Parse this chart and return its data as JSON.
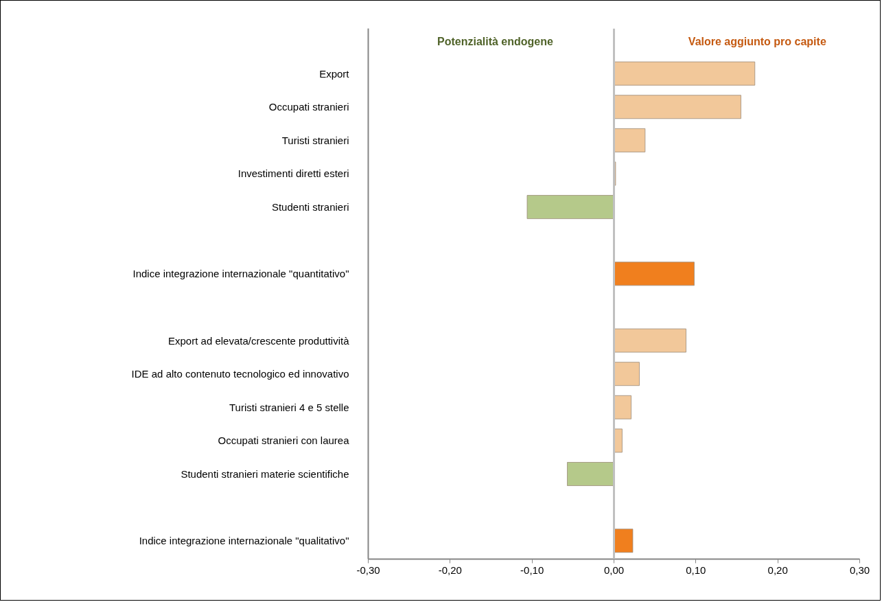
{
  "chart_data": {
    "type": "bar",
    "orientation": "horizontal",
    "categories": [
      "Export",
      "Occupati stranieri",
      "Turisti stranieri",
      "Investimenti diretti esteri",
      "Studenti stranieri",
      null,
      "Indice integrazione internazionale \"quantitativo\"",
      null,
      "Export ad elevata/crescente produttività",
      "IDE ad alto contenuto tecnologico ed innovativo",
      "Turisti stranieri 4 e 5 stelle",
      "Occupati stranieri con laurea",
      "Studenti stranieri materie scientifiche",
      null,
      "Indice integrazione internazionale \"qualitativo\""
    ],
    "values": [
      0.172,
      0.155,
      0.038,
      0.002,
      -0.106,
      null,
      0.098,
      null,
      0.088,
      0.031,
      0.021,
      0.01,
      -0.057,
      null,
      0.023
    ],
    "colors": [
      "#f2c89a",
      "#f2c89a",
      "#f2c89a",
      "#f2c89a",
      "#b5c98a",
      null,
      "#f07f1e",
      null,
      "#f2c89a",
      "#f2c89a",
      "#f2c89a",
      "#f2c89a",
      "#b5c98a",
      null,
      "#f07f1e"
    ],
    "xlim": [
      -0.3,
      0.3
    ],
    "xticks": [
      {
        "value": -0.3,
        "label": "-0,30"
      },
      {
        "value": -0.2,
        "label": "-0,20"
      },
      {
        "value": -0.1,
        "label": "-0,10"
      },
      {
        "value": 0,
        "label": "0,00"
      },
      {
        "value": 0.1,
        "label": "0,10"
      },
      {
        "value": 0.2,
        "label": "0,20"
      },
      {
        "value": 0.3,
        "label": "0,30"
      }
    ],
    "annotations": [
      "Potenzialità endogene",
      "Valore aggiunto pro capite"
    ],
    "ref_lines": [
      {
        "axis": "x",
        "value": 0,
        "color": "#c0c0c0"
      }
    ],
    "grid": false
  }
}
